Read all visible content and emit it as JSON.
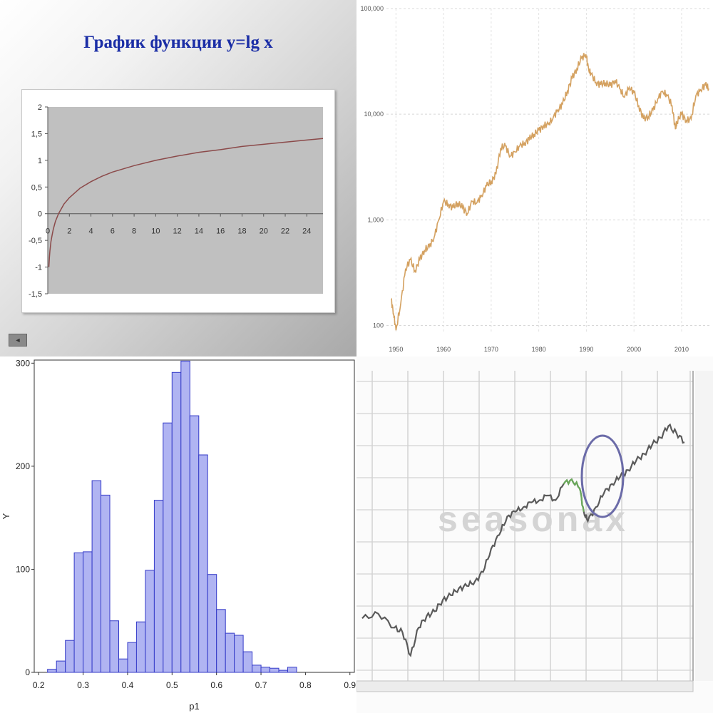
{
  "chart_data": [
    {
      "type": "line",
      "title": "График функции y=lg x",
      "function": "y=lg x",
      "x_ticks": [
        0,
        2,
        4,
        6,
        8,
        10,
        12,
        14,
        16,
        18,
        20,
        22,
        24
      ],
      "y_ticks": [
        2,
        1.5,
        1,
        0.5,
        0,
        -0.5,
        -1,
        -1.5
      ],
      "y_tick_labels": [
        "2",
        "1,5",
        "1",
        "0,5",
        "0",
        "-0,5",
        "-1",
        "-1,5"
      ],
      "xlim": [
        0,
        25.5
      ],
      "ylim": [
        -1.5,
        2
      ],
      "x_label_positions": "axis",
      "series": [
        {
          "x": [
            0.1,
            0.15,
            0.2,
            0.3,
            0.4,
            0.5,
            0.7,
            1,
            1.5,
            2,
            3,
            4,
            5,
            6,
            8,
            10,
            12,
            14,
            16,
            18,
            20,
            22,
            24,
            25.5
          ],
          "y": [
            -1,
            -0.82,
            -0.7,
            -0.52,
            -0.4,
            -0.3,
            -0.15,
            0,
            0.18,
            0.3,
            0.48,
            0.6,
            0.7,
            0.78,
            0.9,
            1,
            1.08,
            1.15,
            1.2,
            1.26,
            1.3,
            1.34,
            1.38,
            1.41
          ],
          "color": "#8b4a4a"
        }
      ],
      "plot_bg": "#c0c0c0"
    },
    {
      "type": "line",
      "x_ticks": [
        1950,
        1960,
        1970,
        1980,
        1990,
        2000,
        2010
      ],
      "y_tick_labels": [
        "100",
        "1,000",
        "10,000",
        "100,000"
      ],
      "y_ticks": [
        100,
        1000,
        10000,
        100000
      ],
      "y_scale": "log",
      "xlim": [
        1948,
        2016
      ],
      "ylim": [
        85,
        100000
      ],
      "grid": true,
      "series": [
        {
          "x": [
            1949,
            1949.5,
            1950,
            1951,
            1952,
            1953,
            1954,
            1955,
            1956,
            1957,
            1958,
            1959,
            1960,
            1961,
            1962,
            1963,
            1964,
            1965,
            1966,
            1967,
            1968,
            1969,
            1970,
            1971,
            1972,
            1973,
            1974,
            1975,
            1976,
            1977,
            1978,
            1979,
            1980,
            1981,
            1982,
            1983,
            1984,
            1985,
            1986,
            1987,
            1988,
            1989,
            1989.9,
            1990.5,
            1991,
            1992,
            1993,
            1994,
            1995,
            1996,
            1997,
            1998,
            1999,
            2000,
            2001,
            2002,
            2003,
            2004,
            2005,
            2006,
            2007,
            2008,
            2008.7,
            2009,
            2010,
            2011,
            2012,
            2013,
            2014,
            2015,
            2015.7
          ],
          "y": [
            175,
            130,
            90,
            160,
            340,
            420,
            330,
            420,
            520,
            560,
            680,
            1000,
            1500,
            1400,
            1300,
            1450,
            1300,
            1150,
            1500,
            1450,
            1700,
            2100,
            2300,
            2700,
            4800,
            5000,
            4000,
            4400,
            5000,
            5300,
            5800,
            6500,
            7000,
            7800,
            8000,
            9200,
            11000,
            12500,
            16500,
            22000,
            27000,
            34000,
            37000,
            26000,
            24000,
            20000,
            19000,
            20000,
            18500,
            21000,
            17500,
            14500,
            18000,
            16000,
            12000,
            9000,
            9500,
            11000,
            14000,
            16500,
            15000,
            12000,
            7200,
            8500,
            10000,
            8700,
            9000,
            15000,
            17000,
            19000,
            17500
          ],
          "color": "#d4a160"
        }
      ]
    },
    {
      "type": "bar",
      "xlabel": "p1",
      "ylabel": "Y",
      "x_ticks": [
        0.2,
        0.3,
        0.4,
        0.5,
        0.6,
        0.7,
        0.8,
        0.9
      ],
      "y_ticks": [
        0,
        100,
        200,
        300
      ],
      "xlim": [
        0.19,
        0.91
      ],
      "ylim": [
        0,
        303
      ],
      "bin_width": 0.02,
      "bin_starts": [
        0.2,
        0.22,
        0.24,
        0.26,
        0.28,
        0.3,
        0.32,
        0.34,
        0.36,
        0.38,
        0.4,
        0.42,
        0.44,
        0.46,
        0.48,
        0.5,
        0.52,
        0.54,
        0.56,
        0.58,
        0.6,
        0.62,
        0.64,
        0.66,
        0.68,
        0.7,
        0.72,
        0.74,
        0.76,
        0.78,
        0.8,
        0.82,
        0.84,
        0.86,
        0.88
      ],
      "values": [
        3,
        11,
        31,
        116,
        117,
        186,
        172,
        50,
        13,
        29,
        49,
        99,
        167,
        242,
        291,
        302,
        249,
        211,
        95,
        61,
        38,
        36,
        20,
        7,
        5,
        4,
        2,
        5
      ],
      "values_note_start": 0.22,
      "bar_color": "#b0b4f2",
      "bar_edge": "#3339c7"
    },
    {
      "type": "line",
      "watermark": "seasonax",
      "grid": true,
      "series": [
        {
          "x": [
            0,
            2,
            4,
            5,
            6,
            7,
            8,
            9,
            10,
            11,
            12,
            13,
            14,
            15,
            16,
            17,
            18,
            19,
            20,
            21,
            22,
            23,
            24,
            25,
            26,
            27,
            27.5,
            28,
            29,
            30,
            31,
            32,
            33,
            34,
            35,
            36,
            37,
            38,
            39,
            40
          ],
          "y": [
            0.42,
            0.44,
            0.38,
            0.36,
            0.26,
            0.38,
            0.43,
            0.45,
            0.5,
            0.52,
            0.55,
            0.56,
            0.58,
            0.62,
            0.72,
            0.78,
            0.86,
            0.88,
            0.9,
            0.92,
            0.93,
            0.95,
            0.93,
            1.0,
            1.02,
            0.98,
            0.88,
            0.84,
            0.9,
            0.96,
            1.0,
            1.03,
            1.06,
            1.1,
            1.13,
            1.17,
            1.2,
            1.25,
            1.22,
            1.18
          ],
          "color": "#5a5a5a"
        }
      ],
      "x_tick_labels": [
        "",
        "",
        "",
        "",
        "",
        "",
        "",
        "",
        ""
      ],
      "highlight_color": "#6b6ba8",
      "highlight_segment_color": "#6aa95a"
    }
  ]
}
